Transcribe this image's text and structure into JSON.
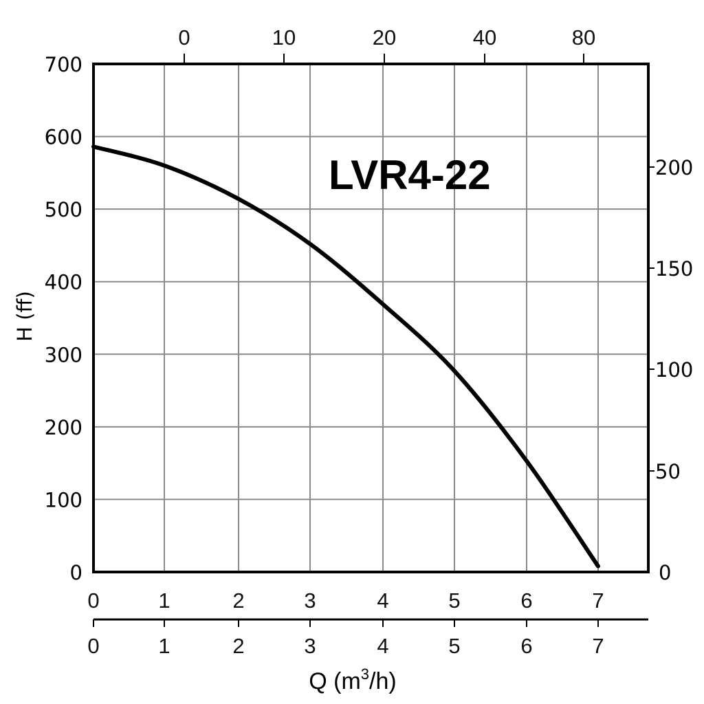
{
  "chart_data": {
    "type": "line",
    "title": "LVR4-22",
    "xlabel": "Q (m3/h)",
    "xlabel_display": {
      "base": "Q (m",
      "sup": "3",
      "tail": "/h)"
    },
    "ylabel": "H (ff)",
    "ylim": [
      0,
      700
    ],
    "xlim": [
      0,
      7.7
    ],
    "grid": true,
    "legend": null,
    "x_ticks": [
      "0",
      "1",
      "2",
      "3",
      "4",
      "5",
      "6",
      "7"
    ],
    "x_ticks_second_axis": [
      "0",
      "1",
      "2",
      "3",
      "4",
      "5",
      "6",
      "7"
    ],
    "top_axis_ticks": [
      "0",
      "10",
      "20",
      "40",
      "80"
    ],
    "left_axis_ticks": [
      "0",
      "100",
      "200",
      "300",
      "400",
      "500",
      "600",
      "700"
    ],
    "right_axis_ticks": [
      "0",
      "50",
      "100",
      "150",
      "200"
    ],
    "series": [
      {
        "name": "LVR4-22",
        "x": [
          0,
          1,
          2,
          3,
          4,
          5,
          6,
          7
        ],
        "values": [
          586,
          560,
          514,
          452,
          369,
          277,
          153,
          8
        ]
      }
    ]
  }
}
